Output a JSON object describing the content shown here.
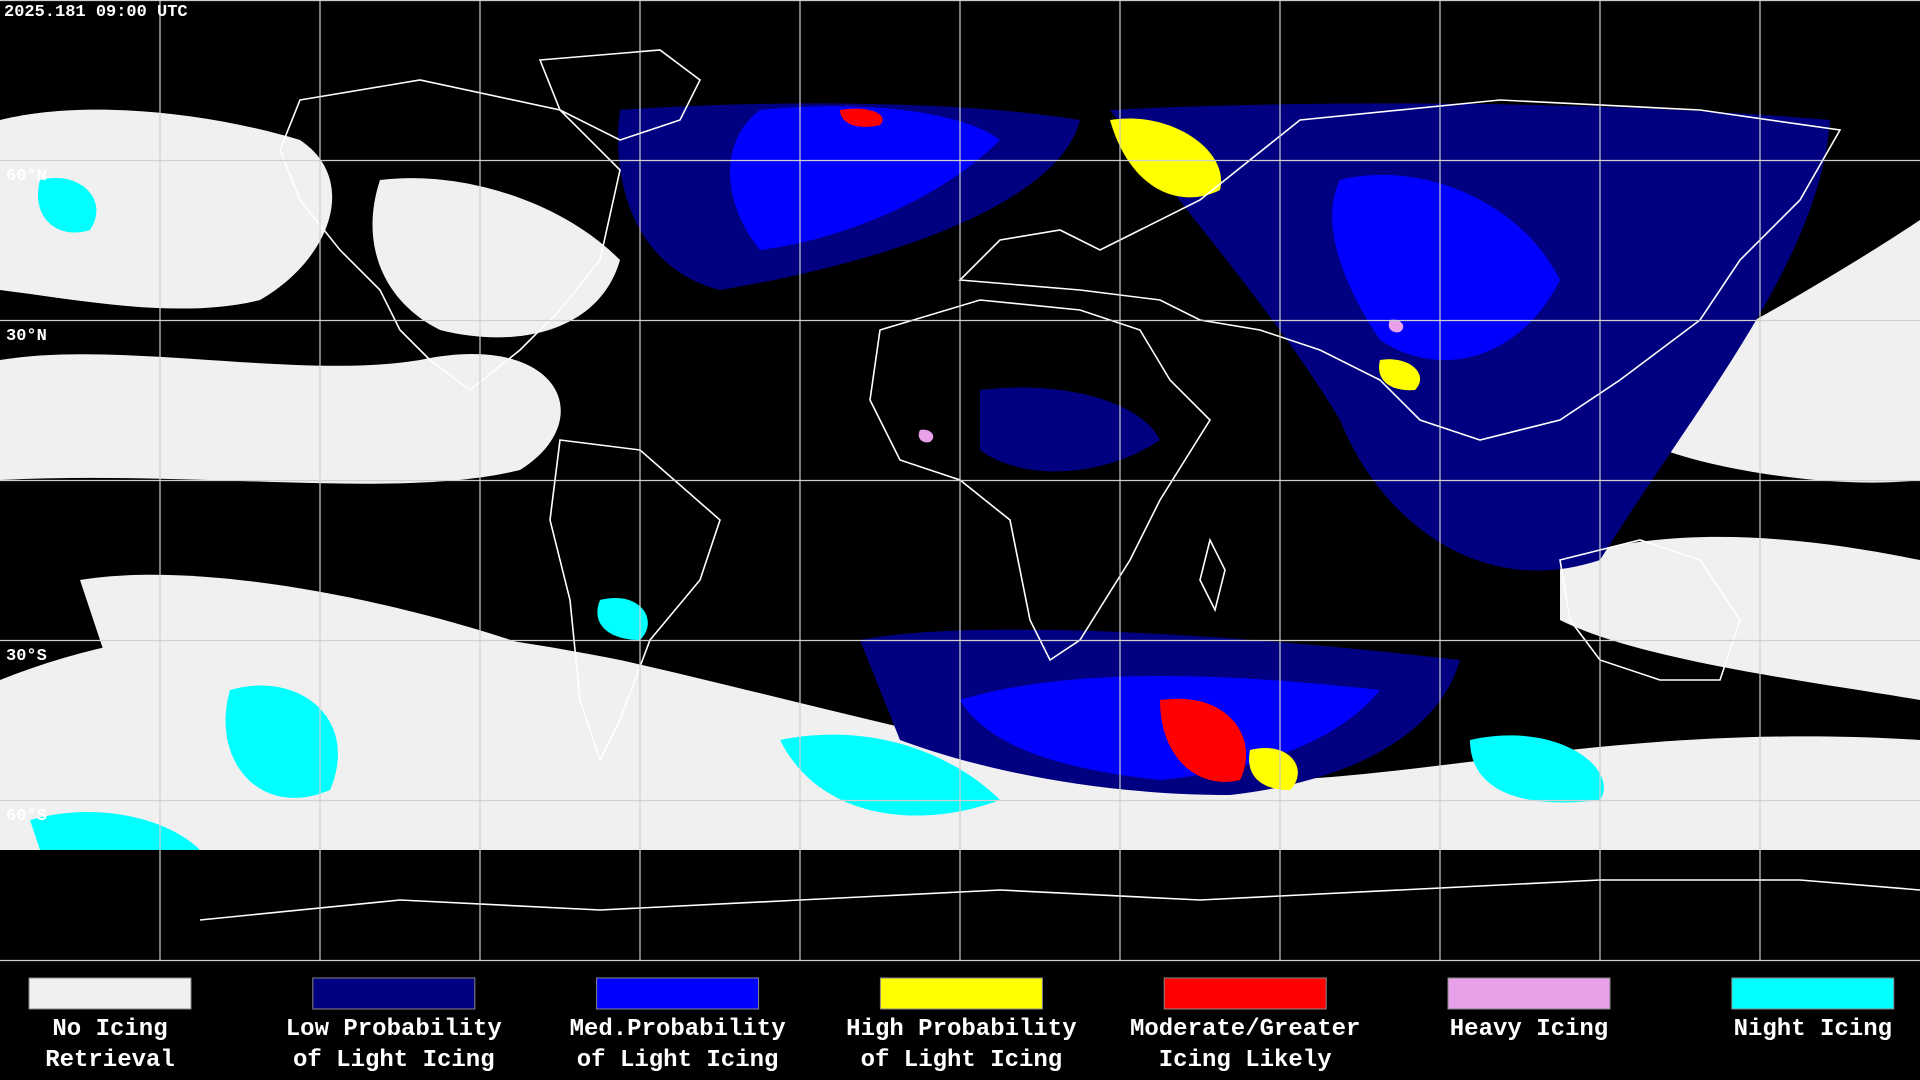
{
  "header": {
    "timestamp": "2025.181 09:00 UTC"
  },
  "latitude_labels": [
    "60°N",
    "30°N",
    "30°S",
    "60°S"
  ],
  "legend": [
    {
      "lines": [
        "No Icing",
        "Retrieval"
      ],
      "color": "#f0f0f0"
    },
    {
      "lines": [
        "Low Probability",
        "of Light Icing"
      ],
      "color": "#000080"
    },
    {
      "lines": [
        "Med.Probability",
        "of Light Icing"
      ],
      "color": "#0000ff"
    },
    {
      "lines": [
        "High Probability",
        "of Light Icing"
      ],
      "color": "#ffff00"
    },
    {
      "lines": [
        "Moderate/Greater",
        "Icing Likely"
      ],
      "color": "#ff0000"
    },
    {
      "lines": [
        "Heavy Icing"
      ],
      "color": "#e8a0e8"
    },
    {
      "lines": [
        "Night Icing"
      ],
      "color": "#00ffff"
    }
  ]
}
